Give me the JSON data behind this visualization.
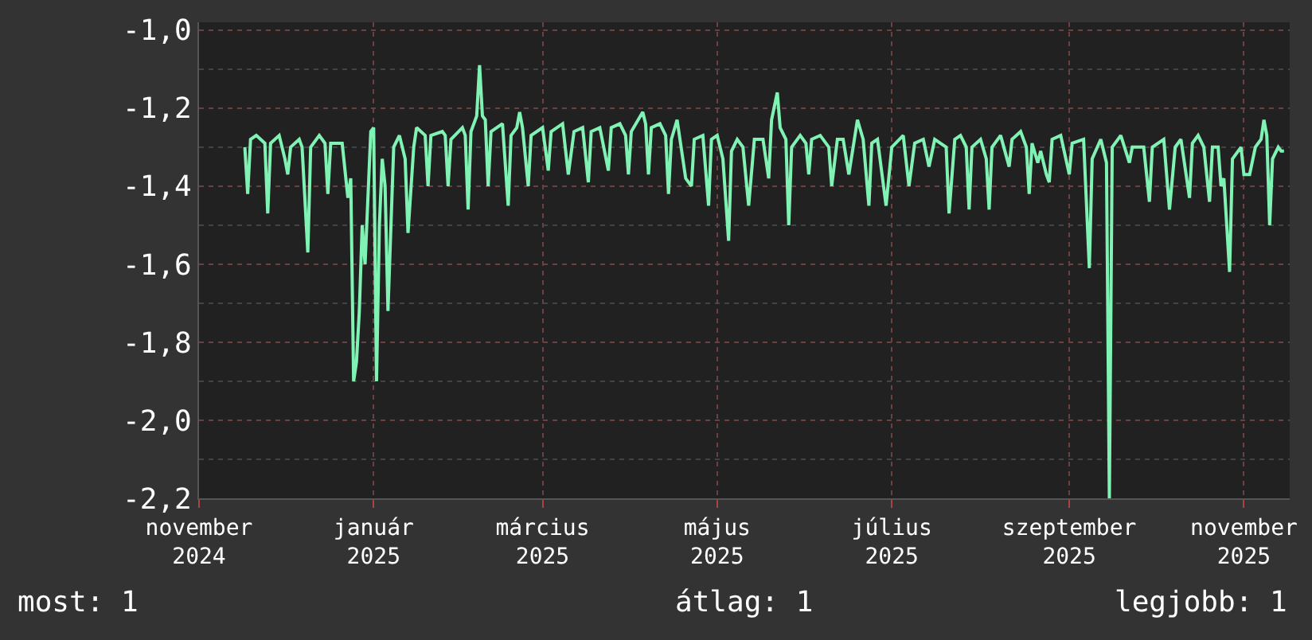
{
  "chart_data": {
    "type": "line",
    "color": "#80f2b4",
    "marker": "none",
    "line_style": "solid",
    "grid": true,
    "x": [
      "2024-11-17",
      "2024-11-18",
      "2024-11-19",
      "2024-11-21",
      "2024-11-24",
      "2024-11-25",
      "2024-11-26",
      "2024-11-29",
      "2024-12-01",
      "2024-12-02",
      "2024-12-03",
      "2024-12-06",
      "2024-12-07",
      "2024-12-09",
      "2024-12-10",
      "2024-12-13",
      "2024-12-15",
      "2024-12-16",
      "2024-12-17",
      "2024-12-21",
      "2024-12-23",
      "2024-12-24",
      "2024-12-25",
      "2024-12-26",
      "2024-12-27",
      "2024-12-28",
      "2024-12-29",
      "2024-12-31",
      "2025-01-01",
      "2025-01-02",
      "2025-01-03",
      "2025-01-04",
      "2025-01-05",
      "2025-01-06",
      "2025-01-08",
      "2025-01-10",
      "2025-01-12",
      "2025-01-13",
      "2025-01-15",
      "2025-01-16",
      "2025-01-19",
      "2025-01-20",
      "2025-01-21",
      "2025-01-25",
      "2025-01-26",
      "2025-01-27",
      "2025-01-28",
      "2025-02-01",
      "2025-02-02",
      "2025-02-03",
      "2025-02-04",
      "2025-02-06",
      "2025-02-07",
      "2025-02-08",
      "2025-02-09",
      "2025-02-10",
      "2025-02-11",
      "2025-02-15",
      "2025-02-17",
      "2025-02-18",
      "2025-02-20",
      "2025-02-21",
      "2025-02-22",
      "2025-02-24",
      "2025-02-25",
      "2025-03-01",
      "2025-03-03",
      "2025-03-04",
      "2025-03-08",
      "2025-03-10",
      "2025-03-12",
      "2025-03-15",
      "2025-03-17",
      "2025-03-18",
      "2025-03-21",
      "2025-03-24",
      "2025-03-25",
      "2025-03-28",
      "2025-03-30",
      "2025-03-31",
      "2025-04-01",
      "2025-04-05",
      "2025-04-06",
      "2025-04-07",
      "2025-04-08",
      "2025-04-11",
      "2025-04-13",
      "2025-04-14",
      "2025-04-15",
      "2025-04-17",
      "2025-04-19",
      "2025-04-20",
      "2025-04-22",
      "2025-04-23",
      "2025-04-26",
      "2025-04-28",
      "2025-04-29",
      "2025-05-01",
      "2025-05-03",
      "2025-05-05",
      "2025-05-06",
      "2025-05-08",
      "2025-05-10",
      "2025-05-12",
      "2025-05-14",
      "2025-05-17",
      "2025-05-19",
      "2025-05-20",
      "2025-05-22",
      "2025-05-23",
      "2025-05-25",
      "2025-05-26",
      "2025-05-27",
      "2025-05-30",
      "2025-06-01",
      "2025-06-02",
      "2025-06-03",
      "2025-06-06",
      "2025-06-09",
      "2025-06-10",
      "2025-06-12",
      "2025-06-14",
      "2025-06-16",
      "2025-06-19",
      "2025-06-21",
      "2025-06-23",
      "2025-06-24",
      "2025-06-26",
      "2025-06-29",
      "2025-07-01",
      "2025-07-05",
      "2025-07-07",
      "2025-07-09",
      "2025-07-12",
      "2025-07-14",
      "2025-07-16",
      "2025-07-20",
      "2025-07-21",
      "2025-07-23",
      "2025-07-25",
      "2025-07-27",
      "2025-07-28",
      "2025-07-29",
      "2025-08-01",
      "2025-08-03",
      "2025-08-04",
      "2025-08-05",
      "2025-08-08",
      "2025-08-11",
      "2025-08-12",
      "2025-08-15",
      "2025-08-17",
      "2025-08-18",
      "2025-08-19",
      "2025-08-21",
      "2025-08-22",
      "2025-08-24",
      "2025-08-25",
      "2025-08-26",
      "2025-08-29",
      "2025-09-01",
      "2025-09-02",
      "2025-09-06",
      "2025-09-08",
      "2025-09-09",
      "2025-09-12",
      "2025-09-14",
      "2025-09-15",
      "2025-09-16",
      "2025-09-19",
      "2025-09-22",
      "2025-09-23",
      "2025-09-27",
      "2025-09-29",
      "2025-09-30",
      "2025-10-04",
      "2025-10-06",
      "2025-10-08",
      "2025-10-10",
      "2025-10-13",
      "2025-10-14",
      "2025-10-16",
      "2025-10-18",
      "2025-10-20",
      "2025-10-21",
      "2025-10-23",
      "2025-10-24",
      "2025-10-25",
      "2025-10-27",
      "2025-10-28",
      "2025-10-31",
      "2025-11-01",
      "2025-11-03",
      "2025-11-05",
      "2025-11-07",
      "2025-11-08",
      "2025-11-09",
      "2025-11-10",
      "2025-11-11",
      "2025-11-13",
      "2025-11-14",
      "2025-11-15"
    ],
    "values": [
      -1.3,
      -1.42,
      -1.28,
      -1.27,
      -1.29,
      -1.47,
      -1.29,
      -1.27,
      -1.33,
      -1.37,
      -1.3,
      -1.28,
      -1.3,
      -1.57,
      -1.3,
      -1.27,
      -1.29,
      -1.42,
      -1.29,
      -1.29,
      -1.43,
      -1.38,
      -1.9,
      -1.85,
      -1.72,
      -1.5,
      -1.6,
      -1.26,
      -1.25,
      -1.9,
      -1.5,
      -1.33,
      -1.4,
      -1.72,
      -1.3,
      -1.27,
      -1.33,
      -1.52,
      -1.3,
      -1.25,
      -1.27,
      -1.4,
      -1.27,
      -1.26,
      -1.27,
      -1.4,
      -1.28,
      -1.25,
      -1.27,
      -1.46,
      -1.26,
      -1.22,
      -1.09,
      -1.22,
      -1.23,
      -1.4,
      -1.26,
      -1.24,
      -1.45,
      -1.27,
      -1.25,
      -1.21,
      -1.25,
      -1.4,
      -1.27,
      -1.25,
      -1.36,
      -1.26,
      -1.24,
      -1.37,
      -1.26,
      -1.25,
      -1.39,
      -1.26,
      -1.25,
      -1.36,
      -1.25,
      -1.24,
      -1.27,
      -1.37,
      -1.26,
      -1.21,
      -1.24,
      -1.37,
      -1.25,
      -1.24,
      -1.27,
      -1.42,
      -1.28,
      -1.23,
      -1.33,
      -1.38,
      -1.4,
      -1.28,
      -1.27,
      -1.45,
      -1.28,
      -1.27,
      -1.33,
      -1.54,
      -1.31,
      -1.28,
      -1.3,
      -1.45,
      -1.28,
      -1.28,
      -1.38,
      -1.23,
      -1.16,
      -1.25,
      -1.28,
      -1.5,
      -1.3,
      -1.27,
      -1.29,
      -1.37,
      -1.28,
      -1.27,
      -1.3,
      -1.4,
      -1.28,
      -1.28,
      -1.37,
      -1.23,
      -1.28,
      -1.45,
      -1.29,
      -1.28,
      -1.45,
      -1.3,
      -1.27,
      -1.4,
      -1.29,
      -1.28,
      -1.35,
      -1.28,
      -1.3,
      -1.47,
      -1.28,
      -1.27,
      -1.3,
      -1.46,
      -1.3,
      -1.28,
      -1.33,
      -1.46,
      -1.3,
      -1.27,
      -1.35,
      -1.28,
      -1.26,
      -1.3,
      -1.42,
      -1.29,
      -1.34,
      -1.31,
      -1.37,
      -1.39,
      -1.28,
      -1.27,
      -1.37,
      -1.29,
      -1.28,
      -1.61,
      -1.33,
      -1.28,
      -1.34,
      -2.2,
      -1.3,
      -1.27,
      -1.34,
      -1.3,
      -1.3,
      -1.44,
      -1.3,
      -1.28,
      -1.46,
      -1.3,
      -1.28,
      -1.43,
      -1.29,
      -1.27,
      -1.3,
      -1.44,
      -1.3,
      -1.3,
      -1.4,
      -1.38,
      -1.62,
      -1.33,
      -1.3,
      -1.37,
      -1.37,
      -1.3,
      -1.28,
      -1.23,
      -1.27,
      -1.5,
      -1.33,
      -1.3,
      -1.31,
      -1.31
    ],
    "xlim": [
      "2024-11-01",
      "2025-11-17"
    ],
    "xticks": [
      {
        "value": "2024-11-01",
        "label": "november 2024"
      },
      {
        "value": "2025-01-01",
        "label": "január 2025"
      },
      {
        "value": "2025-03-01",
        "label": "március 2025"
      },
      {
        "value": "2025-05-01",
        "label": "május 2025"
      },
      {
        "value": "2025-07-01",
        "label": "július 2025"
      },
      {
        "value": "2025-09-01",
        "label": "szeptember 2025"
      },
      {
        "value": "2025-11-01",
        "label": "november 2025"
      }
    ],
    "ylim": [
      -2.2,
      -0.98
    ],
    "yticks": [
      {
        "value": -2.2,
        "label": "-2,2"
      },
      {
        "value": -2.0,
        "label": "-2,0"
      },
      {
        "value": -1.8,
        "label": "-1,8"
      },
      {
        "value": -1.6,
        "label": "-1,6"
      },
      {
        "value": -1.4,
        "label": "-1,4"
      },
      {
        "value": -1.2,
        "label": "-1,2"
      },
      {
        "value": -1.0,
        "label": "-1,0"
      }
    ],
    "annotations": [
      "most: 1",
      "átlag: 1",
      "legjobb: 1"
    ]
  }
}
